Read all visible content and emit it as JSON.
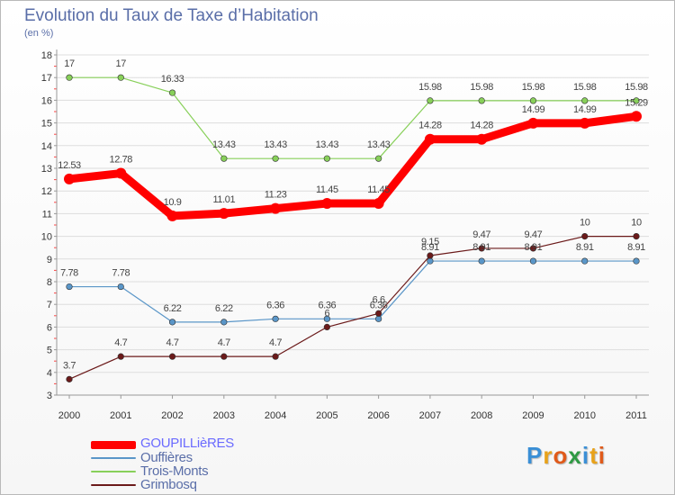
{
  "header": {
    "title": "Evolution du Taux de Taxe d’Habitation",
    "subtitle": "(en %)"
  },
  "logo": {
    "text": "Proxiti",
    "colors": [
      "#3a8fd6",
      "#e8a21a",
      "#e05a1a",
      "#2f9a44",
      "#3a8fd6",
      "#e8a21a",
      "#e05a1a"
    ]
  },
  "legend": [
    {
      "label": "GOUPILLièRES",
      "color": "#ff0000",
      "label_color": "#6b6bff"
    },
    {
      "label": "Ouffières",
      "color": "#5a96c8",
      "label_color": "#5a6ea8"
    },
    {
      "label": "Trois-Monts",
      "color": "#88d05a",
      "label_color": "#5a6ea8"
    },
    {
      "label": "Grimbosq",
      "color": "#6b1a1a",
      "label_color": "#5a6ea8"
    }
  ],
  "chart_data": {
    "type": "line",
    "title": "Evolution du Taux de Taxe d’Habitation",
    "subtitle": "(en %)",
    "xlabel": "",
    "ylabel": "",
    "x": [
      "2000",
      "2001",
      "2002",
      "2003",
      "2004",
      "2005",
      "2006",
      "2007",
      "2008",
      "2009",
      "2010",
      "2011"
    ],
    "yticks": [
      "3",
      "4",
      "5",
      "6",
      "7",
      "8",
      "9",
      "10",
      "11",
      "12",
      "13",
      "14",
      "15",
      "16",
      "17",
      "18"
    ],
    "ylim": [
      3,
      18
    ],
    "grid": "horizontal",
    "legend_position": "bottom-left",
    "series": [
      {
        "name": "Trois-Monts",
        "color": "#88d05a",
        "values": [
          17,
          17,
          16.33,
          13.43,
          13.43,
          13.43,
          13.43,
          15.98,
          15.98,
          15.98,
          15.98,
          15.98
        ],
        "labels": [
          "17",
          "17",
          "16.33",
          "13.43",
          "13.43",
          "13.43",
          "13.43",
          "15.98",
          "15.98",
          "15.98",
          "15.98",
          "15.98"
        ]
      },
      {
        "name": "GOUPILLièRES",
        "color": "#ff0000",
        "values": [
          12.53,
          12.78,
          10.9,
          11.01,
          11.23,
          11.45,
          11.45,
          14.28,
          14.28,
          14.99,
          14.99,
          15.29
        ],
        "labels": [
          "12.53",
          "12.78",
          "10.9",
          "11.01",
          "11.23",
          "11.45",
          "11.45",
          "14.28",
          "14.28",
          "14.99",
          "14.99",
          "15.29"
        ]
      },
      {
        "name": "Ouffières",
        "color": "#5a96c8",
        "values": [
          7.78,
          7.78,
          6.22,
          6.22,
          6.36,
          6.36,
          6.36,
          8.91,
          8.91,
          8.91,
          8.91,
          8.91
        ],
        "labels": [
          "7.78",
          "7.78",
          "6.22",
          "6.22",
          "6.36",
          "6.36",
          "6.36",
          "8.91",
          "8.91",
          "8.91",
          "8.91",
          "8.91"
        ]
      },
      {
        "name": "Grimbosq",
        "color": "#6b1a1a",
        "values": [
          3.7,
          4.7,
          4.7,
          4.7,
          4.7,
          6,
          6.6,
          9.15,
          9.47,
          9.47,
          10,
          10
        ],
        "labels": [
          "3.7",
          "4.7",
          "4.7",
          "4.7",
          "4.7",
          "6",
          "6.6",
          "9.15",
          "9.47",
          "9.47",
          "10",
          "10"
        ]
      }
    ]
  }
}
